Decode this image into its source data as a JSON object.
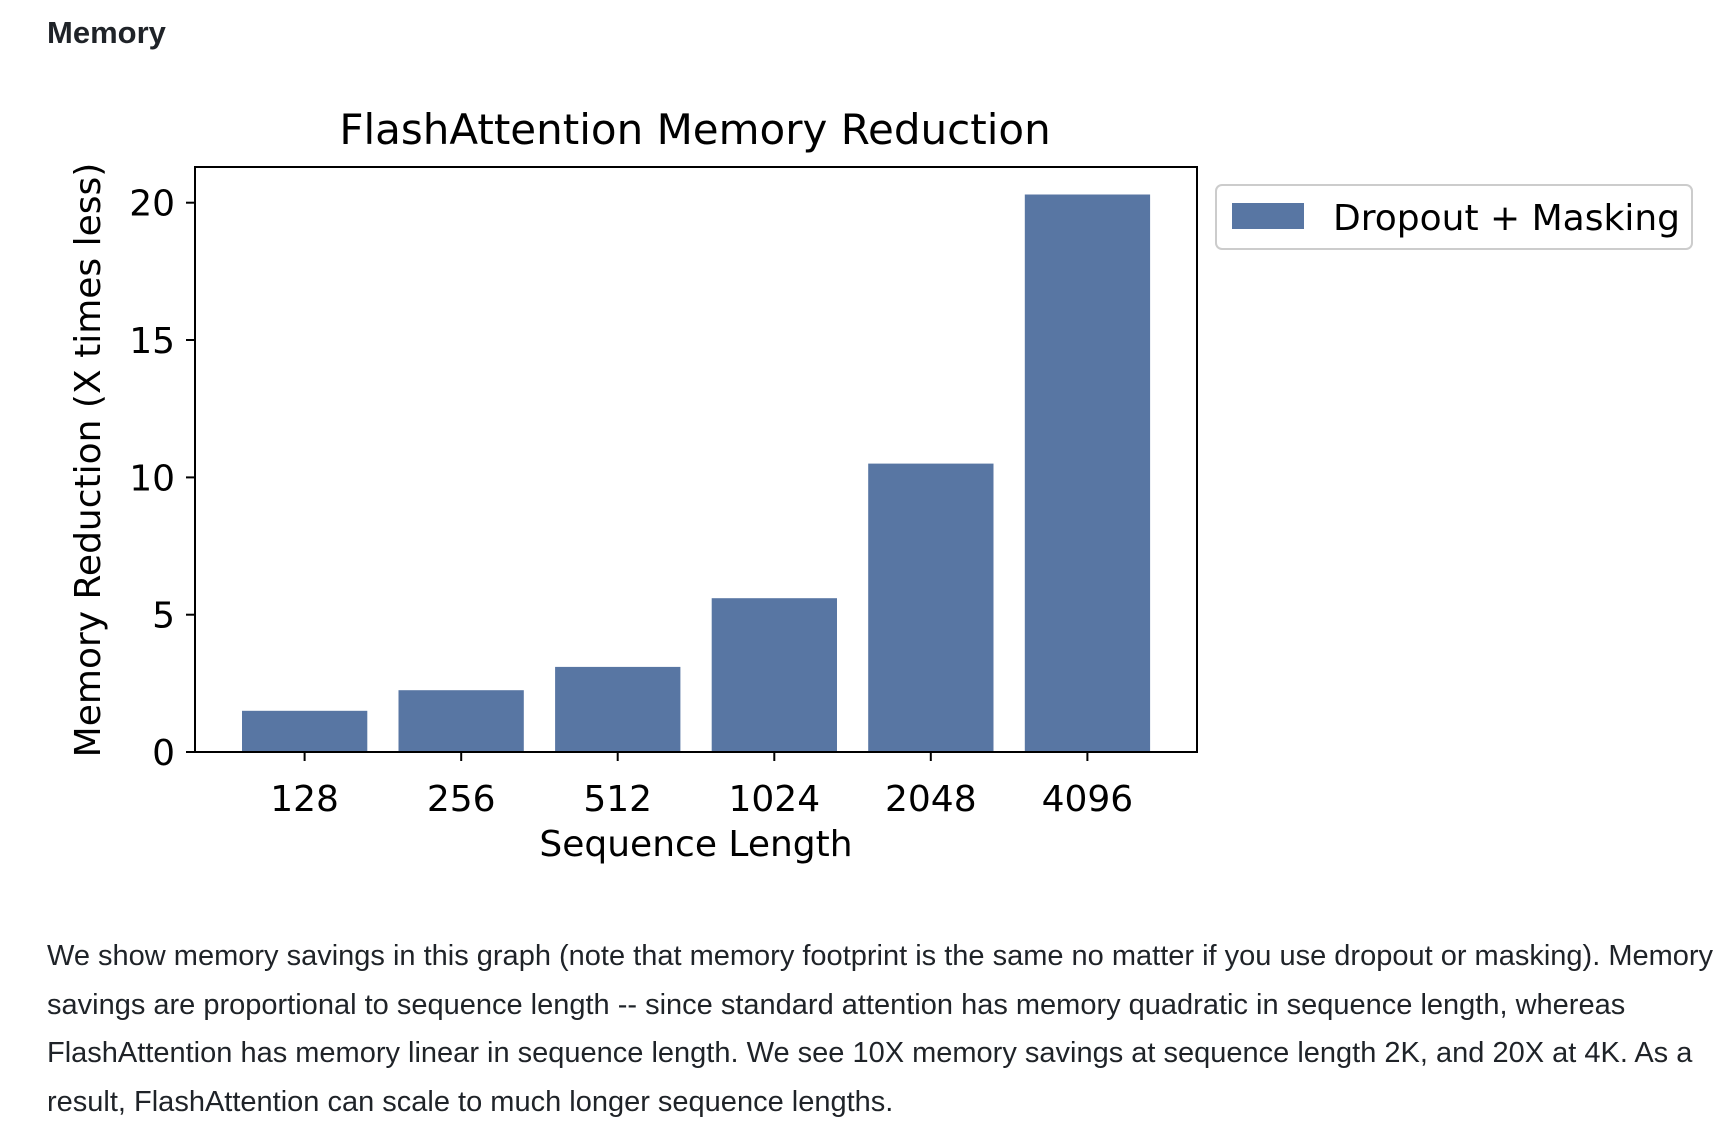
{
  "section": {
    "heading": "Memory"
  },
  "chart_data": {
    "type": "bar",
    "title": "FlashAttention Memory Reduction",
    "xlabel": "Sequence Length",
    "ylabel": "Memory Reduction (X times less)",
    "categories": [
      "128",
      "256",
      "512",
      "1024",
      "2048",
      "4096"
    ],
    "series": [
      {
        "name": "Dropout + Masking",
        "values": [
          1.5,
          2.25,
          3.1,
          5.6,
          10.5,
          20.3
        ],
        "color": "#5876a3"
      }
    ],
    "ylim": [
      0,
      21.3
    ],
    "yticks": [
      0,
      5,
      10,
      15,
      20
    ],
    "grid": false,
    "legend_position": "outside-top-right"
  },
  "description": {
    "text": "We show memory savings in this graph (note that memory footprint is the same no matter if you use dropout or masking). Memory savings are proportional to sequence length -- since standard attention has memory quadratic in sequence length, whereas FlashAttention has memory linear in sequence length. We see 10X memory savings at sequence length 2K, and 20X at 4K. As a result, FlashAttention can scale to much longer sequence lengths."
  }
}
